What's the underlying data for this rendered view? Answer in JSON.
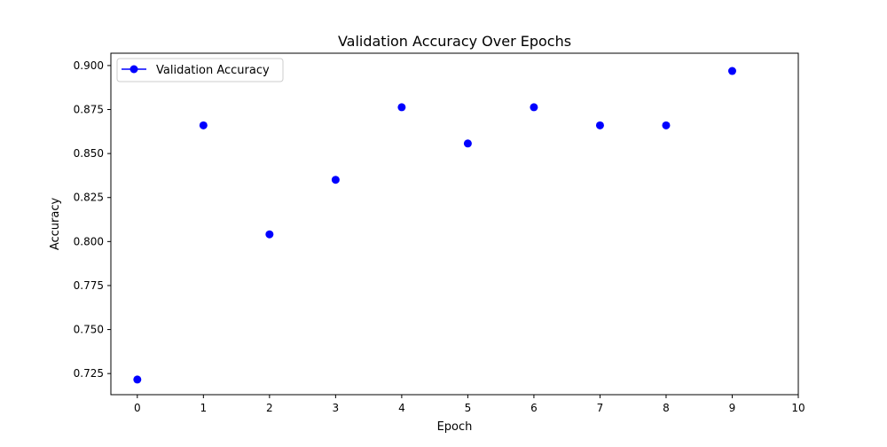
{
  "chart_data": {
    "type": "scatter",
    "title": "Validation Accuracy Over Epochs",
    "xlabel": "Epoch",
    "ylabel": "Accuracy",
    "xlim": [
      -0.4,
      10
    ],
    "ylim": [
      0.713,
      0.907
    ],
    "xticks": [
      0,
      1,
      2,
      3,
      4,
      5,
      6,
      7,
      8,
      9,
      10
    ],
    "xtick_labels": [
      "0",
      "1",
      "2",
      "3",
      "4",
      "5",
      "6",
      "7",
      "8",
      "9",
      "10"
    ],
    "yticks": [
      0.725,
      0.75,
      0.775,
      0.8,
      0.825,
      0.85,
      0.875,
      0.9
    ],
    "ytick_labels": [
      "0.725",
      "0.750",
      "0.775",
      "0.800",
      "0.825",
      "0.850",
      "0.875",
      "0.900"
    ],
    "grid": false,
    "legend_position": "top-left",
    "series": [
      {
        "name": "Validation Accuracy",
        "color": "#0000ff",
        "marker": "circle",
        "x": [
          0,
          1,
          2,
          3,
          4,
          5,
          6,
          7,
          8,
          9
        ],
        "y": [
          0.7216,
          0.866,
          0.8041,
          0.8351,
          0.8763,
          0.8557,
          0.8763,
          0.866,
          0.866,
          0.8969
        ]
      }
    ]
  }
}
